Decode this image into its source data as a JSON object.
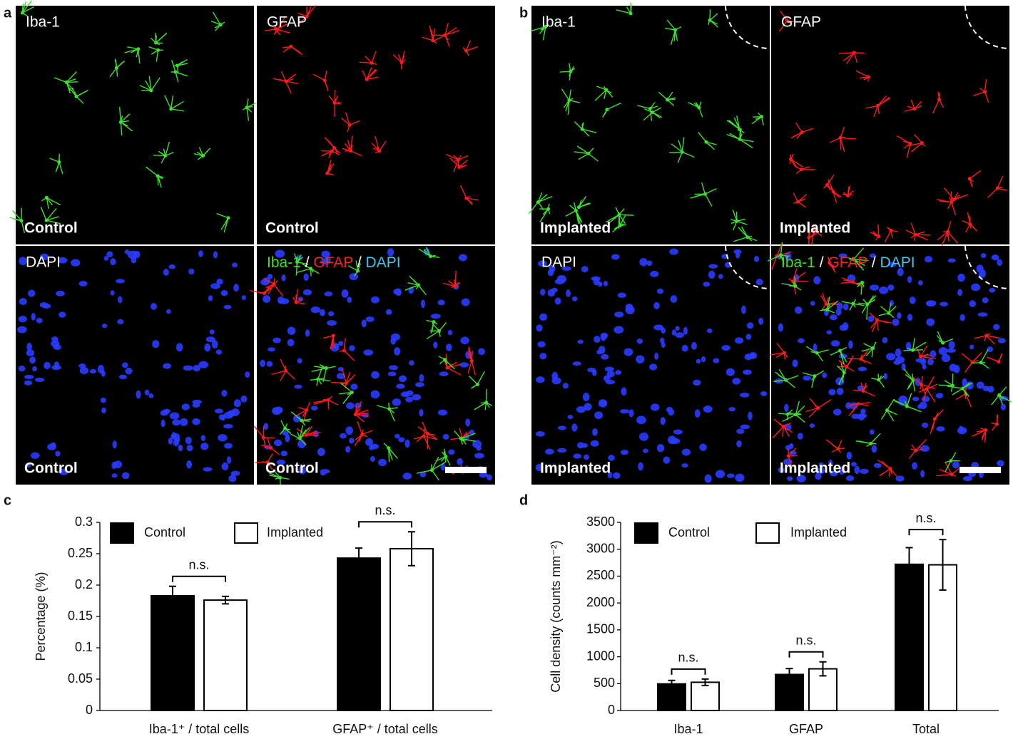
{
  "panels": [
    {
      "label": "a",
      "images": [
        {
          "stain": "Iba-1",
          "condition": "Control"
        },
        {
          "stain": "GFAP",
          "condition": "Control"
        },
        {
          "stain": "DAPI",
          "condition": "Control"
        },
        {
          "stain_parts": [
            {
              "text": "Iba-1",
              "color": "#44dd33"
            },
            {
              "text": "GFAP",
              "color": "#ff2020"
            },
            {
              "text": "DAPI",
              "color": "#40c8e8"
            }
          ],
          "separator": "/",
          "condition": "Control"
        }
      ]
    },
    {
      "label": "b",
      "images": [
        {
          "stain": "Iba-1",
          "condition": "Implanted"
        },
        {
          "stain": "GFAP",
          "condition": "Implanted"
        },
        {
          "stain": "DAPI",
          "condition": "Implanted"
        },
        {
          "stain_parts": [
            {
              "text": "Iba-1",
              "color": "#44dd33"
            },
            {
              "text": "GFAP",
              "color": "#ff2020"
            },
            {
              "text": "DAPI",
              "color": "#40c8e8"
            }
          ],
          "separator": "/",
          "condition": "Implanted"
        }
      ]
    }
  ],
  "chart_data": [
    {
      "type": "bar",
      "panel_label": "c",
      "ylabel": "Percentage (%)",
      "categories": [
        "Iba-1⁺ / total cells",
        "GFAP⁺ / total cells"
      ],
      "series": [
        {
          "name": "Control",
          "color": "#000000",
          "values": [
            0.183,
            0.243
          ],
          "errors": [
            0.015,
            0.016
          ]
        },
        {
          "name": "Implanted",
          "color": "#ffffff",
          "values": [
            0.176,
            0.258
          ],
          "errors": [
            0.006,
            0.027
          ]
        }
      ],
      "annotations": [
        "n.s.",
        "n.s."
      ],
      "ylim": [
        0,
        0.3
      ],
      "yticks": [
        0,
        0.05,
        0.1,
        0.15,
        0.2,
        0.25,
        0.3
      ]
    },
    {
      "type": "bar",
      "panel_label": "d",
      "ylabel": "Cell density (counts mm⁻²)",
      "categories": [
        "Iba-1",
        "GFAP",
        "Total"
      ],
      "series": [
        {
          "name": "Control",
          "color": "#000000",
          "values": [
            495,
            670,
            2720
          ],
          "errors": [
            65,
            110,
            310
          ]
        },
        {
          "name": "Implanted",
          "color": "#ffffff",
          "values": [
            525,
            775,
            2710
          ],
          "errors": [
            60,
            130,
            470
          ]
        }
      ],
      "annotations": [
        "n.s.",
        "n.s.",
        "n.s."
      ],
      "ylim": [
        0,
        3500
      ],
      "yticks": [
        0,
        500,
        1000,
        1500,
        2000,
        2500,
        3000,
        3500
      ]
    }
  ]
}
